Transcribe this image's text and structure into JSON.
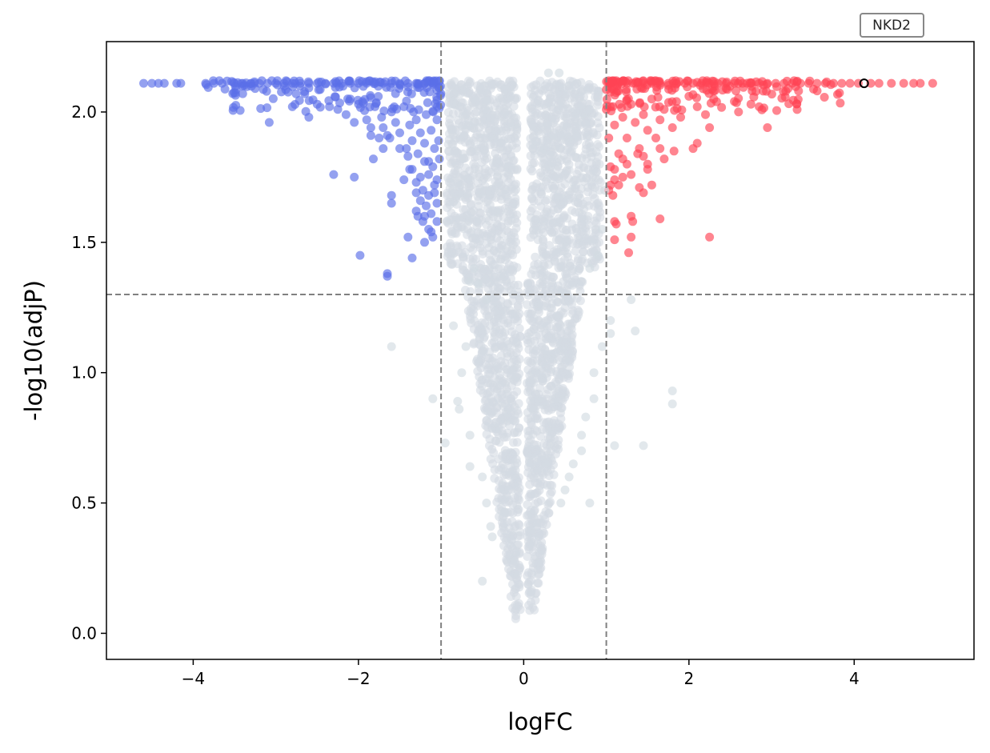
{
  "chart_data": {
    "type": "scatter",
    "title": "",
    "xlabel": "logFC",
    "ylabel": "-log10(adjP)",
    "xlim": [
      -5.05,
      5.45
    ],
    "ylim": [
      -0.1,
      2.27
    ],
    "xticks": [
      -4,
      -2,
      0,
      2,
      4
    ],
    "xtick_labels": [
      "−4",
      "−2",
      "0",
      "2",
      "4"
    ],
    "yticks": [
      0.0,
      0.5,
      1.0,
      1.5,
      2.0
    ],
    "ytick_labels": [
      "0.0",
      "0.5",
      "1.0",
      "1.5",
      "2.0"
    ],
    "thresholds": {
      "logFC": [
        -1,
        1
      ],
      "neg_log10_adjP": 1.3
    },
    "colors": {
      "down": "#5b6fe8",
      "up": "#ff4455",
      "ns": "#d3dbe2",
      "threshold": "#808080"
    },
    "series": [
      {
        "name": "down",
        "color": "#5b6fe8",
        "points": [
          [
            -4.6,
            2.11
          ],
          [
            -4.5,
            2.11
          ],
          [
            -4.42,
            2.11
          ],
          [
            -4.35,
            2.11
          ],
          [
            -4.2,
            2.11
          ],
          [
            -4.15,
            2.11
          ],
          [
            -3.85,
            2.11
          ],
          [
            -3.75,
            2.11
          ],
          [
            -3.65,
            2.11
          ],
          [
            -3.5,
            2.11
          ],
          [
            -3.4,
            2.11
          ],
          [
            -3.3,
            2.11
          ],
          [
            -3.2,
            2.11
          ],
          [
            -3.1,
            2.11
          ],
          [
            -3.0,
            2.11
          ],
          [
            -2.9,
            2.11
          ],
          [
            -2.8,
            2.11
          ],
          [
            -2.7,
            2.11
          ],
          [
            -2.6,
            2.11
          ],
          [
            -2.5,
            2.11
          ],
          [
            -2.4,
            2.11
          ],
          [
            -2.3,
            2.11
          ],
          [
            -2.2,
            2.11
          ],
          [
            -2.1,
            2.11
          ],
          [
            -2.0,
            2.11
          ],
          [
            -1.9,
            2.11
          ],
          [
            -1.8,
            2.11
          ],
          [
            -1.7,
            2.11
          ],
          [
            -1.6,
            2.11
          ],
          [
            -1.5,
            2.11
          ],
          [
            -1.4,
            2.11
          ],
          [
            -1.3,
            2.11
          ],
          [
            -1.2,
            2.11
          ],
          [
            -1.1,
            2.11
          ],
          [
            -3.4,
            2.07
          ],
          [
            -3.25,
            2.09
          ],
          [
            -3.08,
            1.96
          ],
          [
            -2.8,
            2.02
          ],
          [
            -2.65,
            2.07
          ],
          [
            -2.6,
            1.98
          ],
          [
            -2.5,
            2.03
          ],
          [
            -2.35,
            2.02
          ],
          [
            -2.25,
            2.01
          ],
          [
            -2.15,
            1.99
          ],
          [
            -2.1,
            2.05
          ],
          [
            -2.05,
            1.96
          ],
          [
            -1.95,
            2.04
          ],
          [
            -1.9,
            1.97
          ],
          [
            -1.85,
            1.94
          ],
          [
            -1.8,
            2.02
          ],
          [
            -1.75,
            1.9
          ],
          [
            -1.72,
            1.98
          ],
          [
            -1.7,
            1.94
          ],
          [
            -1.65,
            1.91
          ],
          [
            -1.6,
            2.0
          ],
          [
            -1.55,
            1.96
          ],
          [
            -1.5,
            1.92
          ],
          [
            -1.45,
            2.02
          ],
          [
            -1.42,
            1.86
          ],
          [
            -1.38,
            1.95
          ],
          [
            -1.35,
            1.89
          ],
          [
            -1.3,
            1.97
          ],
          [
            -1.28,
            1.84
          ],
          [
            -1.25,
            1.92
          ],
          [
            -1.2,
            1.88
          ],
          [
            -1.18,
            1.99
          ],
          [
            -1.15,
            1.81
          ],
          [
            -1.12,
            1.93
          ],
          [
            -1.08,
            1.86
          ],
          [
            -1.05,
            1.97
          ],
          [
            -1.03,
            1.89
          ],
          [
            -1.85,
            1.91
          ],
          [
            -1.7,
            1.86
          ],
          [
            -1.62,
            1.9
          ],
          [
            -1.5,
            1.86
          ],
          [
            -1.4,
            1.83
          ],
          [
            -1.35,
            1.78
          ],
          [
            -1.25,
            1.75
          ],
          [
            -1.2,
            1.81
          ],
          [
            -1.15,
            1.76
          ],
          [
            -1.1,
            1.79
          ],
          [
            -1.05,
            1.74
          ],
          [
            -1.02,
            1.82
          ],
          [
            -1.82,
            1.82
          ],
          [
            -1.38,
            1.78
          ],
          [
            -1.3,
            1.73
          ],
          [
            -1.22,
            1.7
          ],
          [
            -1.15,
            1.68
          ],
          [
            -1.08,
            1.72
          ],
          [
            -1.05,
            1.65
          ],
          [
            -2.3,
            1.76
          ],
          [
            -2.05,
            1.75
          ],
          [
            -1.45,
            1.74
          ],
          [
            -1.3,
            1.69
          ],
          [
            -1.25,
            1.66
          ],
          [
            -1.18,
            1.64
          ],
          [
            -1.12,
            1.61
          ],
          [
            -1.08,
            1.69
          ],
          [
            -1.05,
            1.58
          ],
          [
            -1.6,
            1.68
          ],
          [
            -1.6,
            1.65
          ],
          [
            -1.3,
            1.62
          ],
          [
            -1.28,
            1.6
          ],
          [
            -1.22,
            1.58
          ],
          [
            -1.2,
            1.6
          ],
          [
            -1.15,
            1.55
          ],
          [
            -1.12,
            1.54
          ],
          [
            -1.1,
            1.52
          ],
          [
            -1.4,
            1.52
          ],
          [
            -1.2,
            1.5
          ],
          [
            -1.35,
            1.44
          ],
          [
            -1.98,
            1.45
          ],
          [
            -1.65,
            1.38
          ],
          [
            -1.65,
            1.37
          ]
        ]
      },
      {
        "name": "up",
        "color": "#ff4455",
        "points": [
          [
            1.05,
            2.11
          ],
          [
            1.15,
            2.11
          ],
          [
            1.25,
            2.11
          ],
          [
            1.35,
            2.11
          ],
          [
            1.45,
            2.11
          ],
          [
            1.55,
            2.11
          ],
          [
            1.65,
            2.11
          ],
          [
            1.75,
            2.11
          ],
          [
            1.85,
            2.11
          ],
          [
            1.95,
            2.11
          ],
          [
            2.05,
            2.11
          ],
          [
            2.15,
            2.11
          ],
          [
            2.25,
            2.11
          ],
          [
            2.35,
            2.11
          ],
          [
            2.45,
            2.11
          ],
          [
            2.55,
            2.11
          ],
          [
            2.65,
            2.11
          ],
          [
            2.75,
            2.11
          ],
          [
            2.85,
            2.11
          ],
          [
            2.95,
            2.11
          ],
          [
            3.05,
            2.11
          ],
          [
            3.15,
            2.11
          ],
          [
            3.25,
            2.11
          ],
          [
            3.35,
            2.11
          ],
          [
            3.45,
            2.11
          ],
          [
            3.55,
            2.11
          ],
          [
            3.65,
            2.11
          ],
          [
            3.75,
            2.11
          ],
          [
            3.85,
            2.11
          ],
          [
            3.95,
            2.11
          ],
          [
            4.05,
            2.11
          ],
          [
            4.2,
            2.11
          ],
          [
            4.3,
            2.11
          ],
          [
            4.45,
            2.11
          ],
          [
            4.6,
            2.11
          ],
          [
            4.72,
            2.11
          ],
          [
            4.8,
            2.11
          ],
          [
            4.95,
            2.11
          ],
          [
            2.45,
            2.09
          ],
          [
            2.9,
            2.08
          ],
          [
            3.2,
            2.09
          ],
          [
            2.55,
            2.04
          ],
          [
            2.6,
            2.0
          ],
          [
            2.75,
            2.03
          ],
          [
            2.85,
            2.02
          ],
          [
            2.95,
            1.94
          ],
          [
            2.3,
            2.05
          ],
          [
            2.2,
            1.99
          ],
          [
            2.1,
            2.02
          ],
          [
            2.25,
            1.94
          ],
          [
            2.0,
            2.06
          ],
          [
            1.9,
            1.98
          ],
          [
            1.85,
            2.04
          ],
          [
            1.8,
            1.94
          ],
          [
            1.7,
            2.01
          ],
          [
            1.65,
            1.97
          ],
          [
            1.6,
            1.9
          ],
          [
            1.55,
            2.05
          ],
          [
            1.5,
            1.93
          ],
          [
            1.45,
            1.99
          ],
          [
            1.4,
            1.86
          ],
          [
            1.35,
            1.96
          ],
          [
            1.3,
            2.03
          ],
          [
            1.25,
            1.9
          ],
          [
            1.2,
            1.98
          ],
          [
            1.15,
            1.84
          ],
          [
            1.1,
            1.95
          ],
          [
            1.05,
            2.02
          ],
          [
            1.03,
            1.9
          ],
          [
            2.1,
            1.88
          ],
          [
            2.05,
            1.86
          ],
          [
            1.82,
            1.85
          ],
          [
            1.65,
            1.86
          ],
          [
            1.5,
            1.8
          ],
          [
            1.45,
            1.83
          ],
          [
            1.38,
            1.84
          ],
          [
            1.3,
            1.76
          ],
          [
            1.25,
            1.8
          ],
          [
            1.2,
            1.82
          ],
          [
            1.15,
            1.72
          ],
          [
            1.1,
            1.78
          ],
          [
            1.05,
            1.79
          ],
          [
            1.03,
            1.7
          ],
          [
            1.5,
            1.78
          ],
          [
            1.7,
            1.82
          ],
          [
            1.55,
            1.72
          ],
          [
            1.4,
            1.71
          ],
          [
            1.45,
            1.69
          ],
          [
            1.2,
            1.75
          ],
          [
            1.1,
            1.74
          ],
          [
            1.08,
            1.68
          ],
          [
            1.05,
            1.72
          ],
          [
            1.65,
            1.59
          ],
          [
            1.3,
            1.6
          ],
          [
            1.32,
            1.58
          ],
          [
            1.1,
            1.58
          ],
          [
            1.12,
            1.57
          ],
          [
            1.3,
            1.52
          ],
          [
            1.1,
            1.51
          ],
          [
            1.27,
            1.46
          ],
          [
            2.25,
            1.52
          ]
        ]
      },
      {
        "name": "not significant",
        "color": "#d3dbe2",
        "points": [
          [
            0.3,
            2.15
          ],
          [
            0.43,
            2.15
          ],
          [
            -0.55,
            1.34
          ],
          [
            -0.85,
            1.18
          ],
          [
            -0.6,
            1.4
          ],
          [
            -0.65,
            1.35
          ],
          [
            -0.45,
            1.28
          ],
          [
            -0.7,
            1.1
          ],
          [
            -0.75,
            1.0
          ],
          [
            -0.8,
            0.89
          ],
          [
            -0.78,
            0.86
          ],
          [
            -0.95,
            0.73
          ],
          [
            -1.1,
            0.9
          ],
          [
            -1.6,
            1.1
          ],
          [
            -0.65,
            0.76
          ],
          [
            -0.65,
            0.64
          ],
          [
            -0.5,
            0.6
          ],
          [
            -0.45,
            0.5
          ],
          [
            -0.4,
            0.41
          ],
          [
            -0.38,
            0.37
          ],
          [
            -0.5,
            0.2
          ],
          [
            0.85,
            1.0
          ],
          [
            0.75,
            0.83
          ],
          [
            0.7,
            0.76
          ],
          [
            0.7,
            0.7
          ],
          [
            0.6,
            0.65
          ],
          [
            0.55,
            0.6
          ],
          [
            0.5,
            0.55
          ],
          [
            0.45,
            0.5
          ],
          [
            0.8,
            0.5
          ],
          [
            0.85,
            0.9
          ],
          [
            0.95,
            1.1
          ],
          [
            1.05,
            1.2
          ],
          [
            1.05,
            1.15
          ],
          [
            1.3,
            1.28
          ],
          [
            1.35,
            1.16
          ],
          [
            1.1,
            0.72
          ],
          [
            1.45,
            0.72
          ],
          [
            1.8,
            0.93
          ],
          [
            1.8,
            0.88
          ],
          [
            0.8,
            1.4
          ],
          [
            0.9,
            1.45
          ],
          [
            0.95,
            1.55
          ],
          [
            0.98,
            1.7
          ]
        ]
      }
    ],
    "annotation": {
      "label": "NKD2",
      "x": 4.12,
      "y": 2.11
    }
  }
}
